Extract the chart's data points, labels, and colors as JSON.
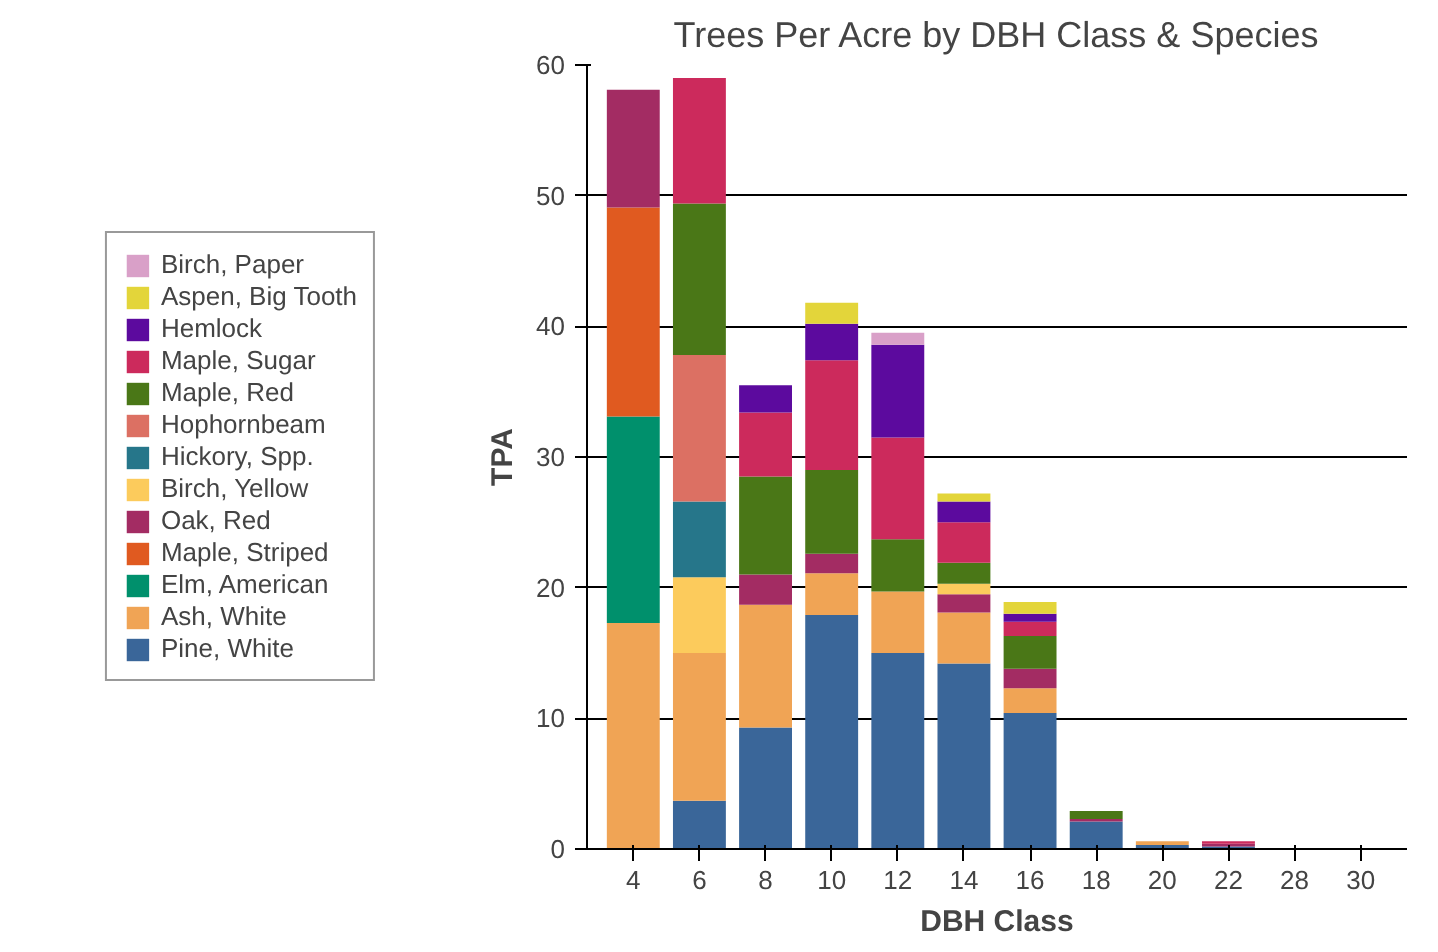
{
  "chart_data": {
    "type": "bar",
    "title": "Trees Per Acre by DBH Class & Species",
    "xlabel": "DBH Class",
    "ylabel": "TPA",
    "categories": [
      "4",
      "6",
      "8",
      "10",
      "12",
      "14",
      "16",
      "18",
      "20",
      "22",
      "28",
      "30"
    ],
    "stacked": true,
    "ylim": [
      0,
      60
    ],
    "yticks": [
      0,
      10,
      20,
      30,
      40,
      50,
      60
    ],
    "grid": "y",
    "legend": "left",
    "series": [
      {
        "name": "Pine, White",
        "color": "#3a6699",
        "values": [
          0,
          3.7,
          9.3,
          17.9,
          15,
          14.2,
          10.4,
          2.1,
          0.3,
          0.2,
          0,
          0
        ]
      },
      {
        "name": "Ash, White",
        "color": "#f0a455",
        "values": [
          17.3,
          11.3,
          9.4,
          3.2,
          4.7,
          3.9,
          1.9,
          0,
          0.3,
          0,
          0,
          0
        ]
      },
      {
        "name": "Elm, American",
        "color": "#00906c",
        "values": [
          15.8,
          0,
          0,
          0,
          0,
          0,
          0,
          0,
          0,
          0,
          0,
          0
        ]
      },
      {
        "name": "Maple, Striped",
        "color": "#e05a20",
        "values": [
          16,
          0,
          0,
          0,
          0,
          0,
          0,
          0,
          0,
          0,
          0,
          0
        ]
      },
      {
        "name": "Oak, Red",
        "color": "#a32c63",
        "values": [
          9,
          0,
          2.3,
          1.5,
          0,
          1.4,
          1.5,
          0.2,
          0,
          0.2,
          0,
          0
        ]
      },
      {
        "name": "Birch, Yellow",
        "color": "#fccb5c",
        "values": [
          0,
          5.8,
          0,
          0,
          0,
          0.8,
          0,
          0,
          0,
          0,
          0,
          0
        ]
      },
      {
        "name": "Hickory, Spp.",
        "color": "#26768a",
        "values": [
          0,
          5.8,
          0,
          0,
          0,
          0,
          0,
          0,
          0,
          0,
          0,
          0
        ]
      },
      {
        "name": "Hophornbeam",
        "color": "#dc7063",
        "values": [
          0,
          11.2,
          0,
          0,
          0,
          0,
          0,
          0,
          0,
          0,
          0,
          0
        ]
      },
      {
        "name": "Maple, Red",
        "color": "#4a7717",
        "values": [
          0,
          11.6,
          7.5,
          6.4,
          4,
          1.6,
          2.5,
          0.6,
          0,
          0,
          0,
          0
        ]
      },
      {
        "name": "Maple, Sugar",
        "color": "#cc2a5c",
        "values": [
          0,
          9.6,
          4.9,
          8.4,
          7.8,
          3.1,
          1.1,
          0,
          0,
          0.2,
          0,
          0
        ]
      },
      {
        "name": "Hemlock",
        "color": "#5c0a9e",
        "values": [
          0,
          0,
          2.1,
          2.8,
          7.1,
          1.6,
          0.6,
          0,
          0,
          0,
          0,
          0
        ]
      },
      {
        "name": "Aspen, Big Tooth",
        "color": "#e3d53a",
        "values": [
          0,
          0,
          0,
          1.6,
          0,
          0.6,
          0.9,
          0,
          0,
          0,
          0,
          0
        ]
      },
      {
        "name": "Birch, Paper",
        "color": "#d9a0c8",
        "values": [
          0,
          0,
          0,
          0,
          0.9,
          0,
          0,
          0,
          0,
          0,
          0,
          0
        ]
      }
    ]
  }
}
